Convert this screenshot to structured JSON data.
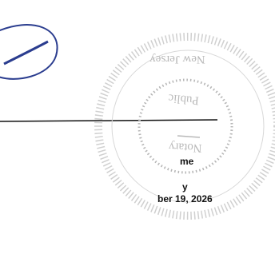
{
  "seal": {
    "state": "New Jersey",
    "title_top": "Public",
    "title_bottom": "Notary"
  },
  "document": {
    "line_1": "me",
    "line_2": "y",
    "line_3": "ber 19, 2026"
  }
}
